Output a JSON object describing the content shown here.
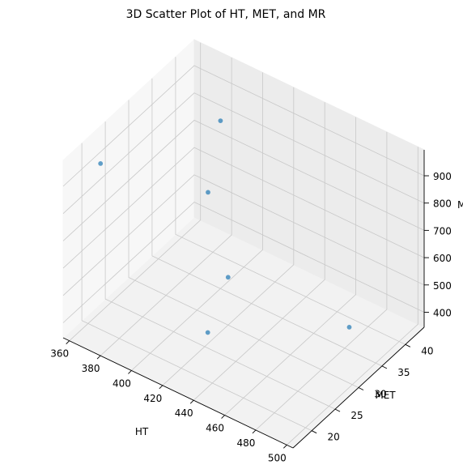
{
  "chart_data": {
    "type": "scatter",
    "projection": "3d",
    "title": "3D Scatter Plot of HT, MET, and MR",
    "xlabel": "HT",
    "ylabel": "MET",
    "zlabel": "MR",
    "xlim": [
      356,
      504
    ],
    "ylim": [
      16,
      44
    ],
    "zlim": [
      345,
      995
    ],
    "xticks": [
      360,
      380,
      400,
      420,
      440,
      460,
      480,
      500
    ],
    "yticks": [
      20,
      25,
      30,
      35,
      40
    ],
    "zticks": [
      400,
      500,
      600,
      700,
      800,
      900
    ],
    "grid": true,
    "marker_color": "#1f77b4",
    "points": [
      {
        "x": 362,
        "y": 22,
        "z": 905
      },
      {
        "x": 400,
        "y": 35,
        "z": 960
      },
      {
        "x": 395,
        "y": 34,
        "z": 700
      },
      {
        "x": 420,
        "y": 30,
        "z": 520
      },
      {
        "x": 428,
        "y": 23,
        "z": 450
      },
      {
        "x": 498,
        "y": 30,
        "z": 550
      }
    ]
  }
}
